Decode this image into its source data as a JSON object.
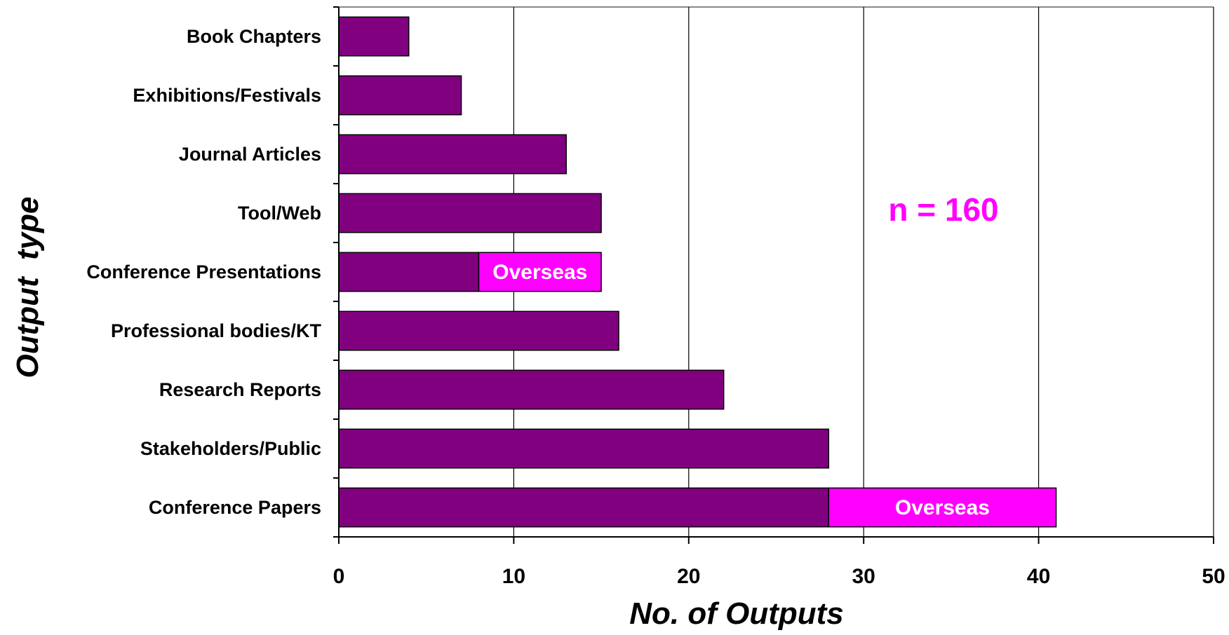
{
  "chart_data": {
    "type": "bar",
    "orientation": "horizontal",
    "stacked": true,
    "categories": [
      "Book Chapters",
      "Exhibitions/Festivals",
      "Journal Articles",
      "Tool/Web",
      "Conference Presentations",
      "Professional bodies/KT",
      "Research Reports",
      "Stakeholders/Public",
      "Conference Papers"
    ],
    "series": [
      {
        "values": [
          4,
          7,
          13,
          15,
          8,
          16,
          22,
          28,
          28
        ],
        "color": "#800080"
      },
      {
        "name": "Overseas",
        "values": [
          0,
          0,
          0,
          0,
          7,
          0,
          0,
          0,
          13
        ],
        "color": "#FF00FF"
      }
    ],
    "segment_label": "Overseas",
    "xlabel": "No. of Outputs",
    "ylabel": "Output  type",
    "xlim": [
      0,
      50
    ],
    "xticks": [
      0,
      10,
      20,
      30,
      40,
      50
    ],
    "grid": "vertical",
    "annotation": {
      "text": "n = 160",
      "color": "#FF00FF"
    }
  }
}
